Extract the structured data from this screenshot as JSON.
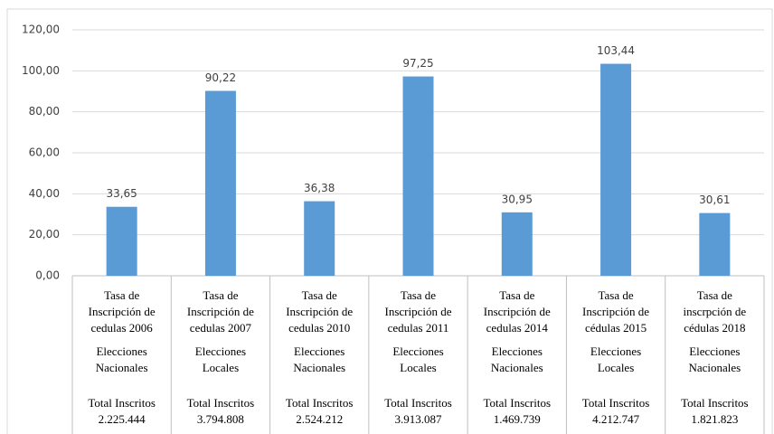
{
  "chart_data": {
    "type": "bar",
    "categories": [
      "Tasa de Inscripción de cedulas 2006",
      "Tasa de Inscripción de cedulas 2007",
      "Tasa de Inscripción de cedulas 2010",
      "Tasa de Inscripción de cedulas 2011",
      "Tasa de Inscripción de cedulas 2014",
      "Tasa de Inscripción de cédulas 2015",
      "Tasa de inscrpción de cédulas 2018"
    ],
    "values": [
      33.65,
      90.22,
      36.38,
      97.25,
      30.95,
      103.44,
      30.61
    ],
    "value_labels": [
      "33,65",
      "90,22",
      "36,38",
      "97,25",
      "30,95",
      "103,44",
      "30,61"
    ],
    "elections": [
      "Elecciones Nacionales",
      "Elecciones Locales",
      "Elecciones Nacionales",
      "Elecciones Locales",
      "Elecciones Nacionales",
      "Elecciones Locales",
      "Elecciones Nacionales"
    ],
    "total_label": "Total Inscritos",
    "totals": [
      "2.225.444",
      "3.794.808",
      "2.524.212",
      "3.913.087",
      "1.469.739",
      "4.212.747",
      "1.821.823"
    ],
    "color": "#5b9bd5",
    "ylim": [
      0,
      120
    ],
    "yticks": [
      {
        "value": 0,
        "label": "0,00"
      },
      {
        "value": 20,
        "label": "20,00"
      },
      {
        "value": 40,
        "label": "40,00"
      },
      {
        "value": 60,
        "label": "60,00"
      },
      {
        "value": 80,
        "label": "80,00"
      },
      {
        "value": 100,
        "label": "100,00"
      },
      {
        "value": 120,
        "label": "120,00"
      }
    ],
    "grid": true
  }
}
